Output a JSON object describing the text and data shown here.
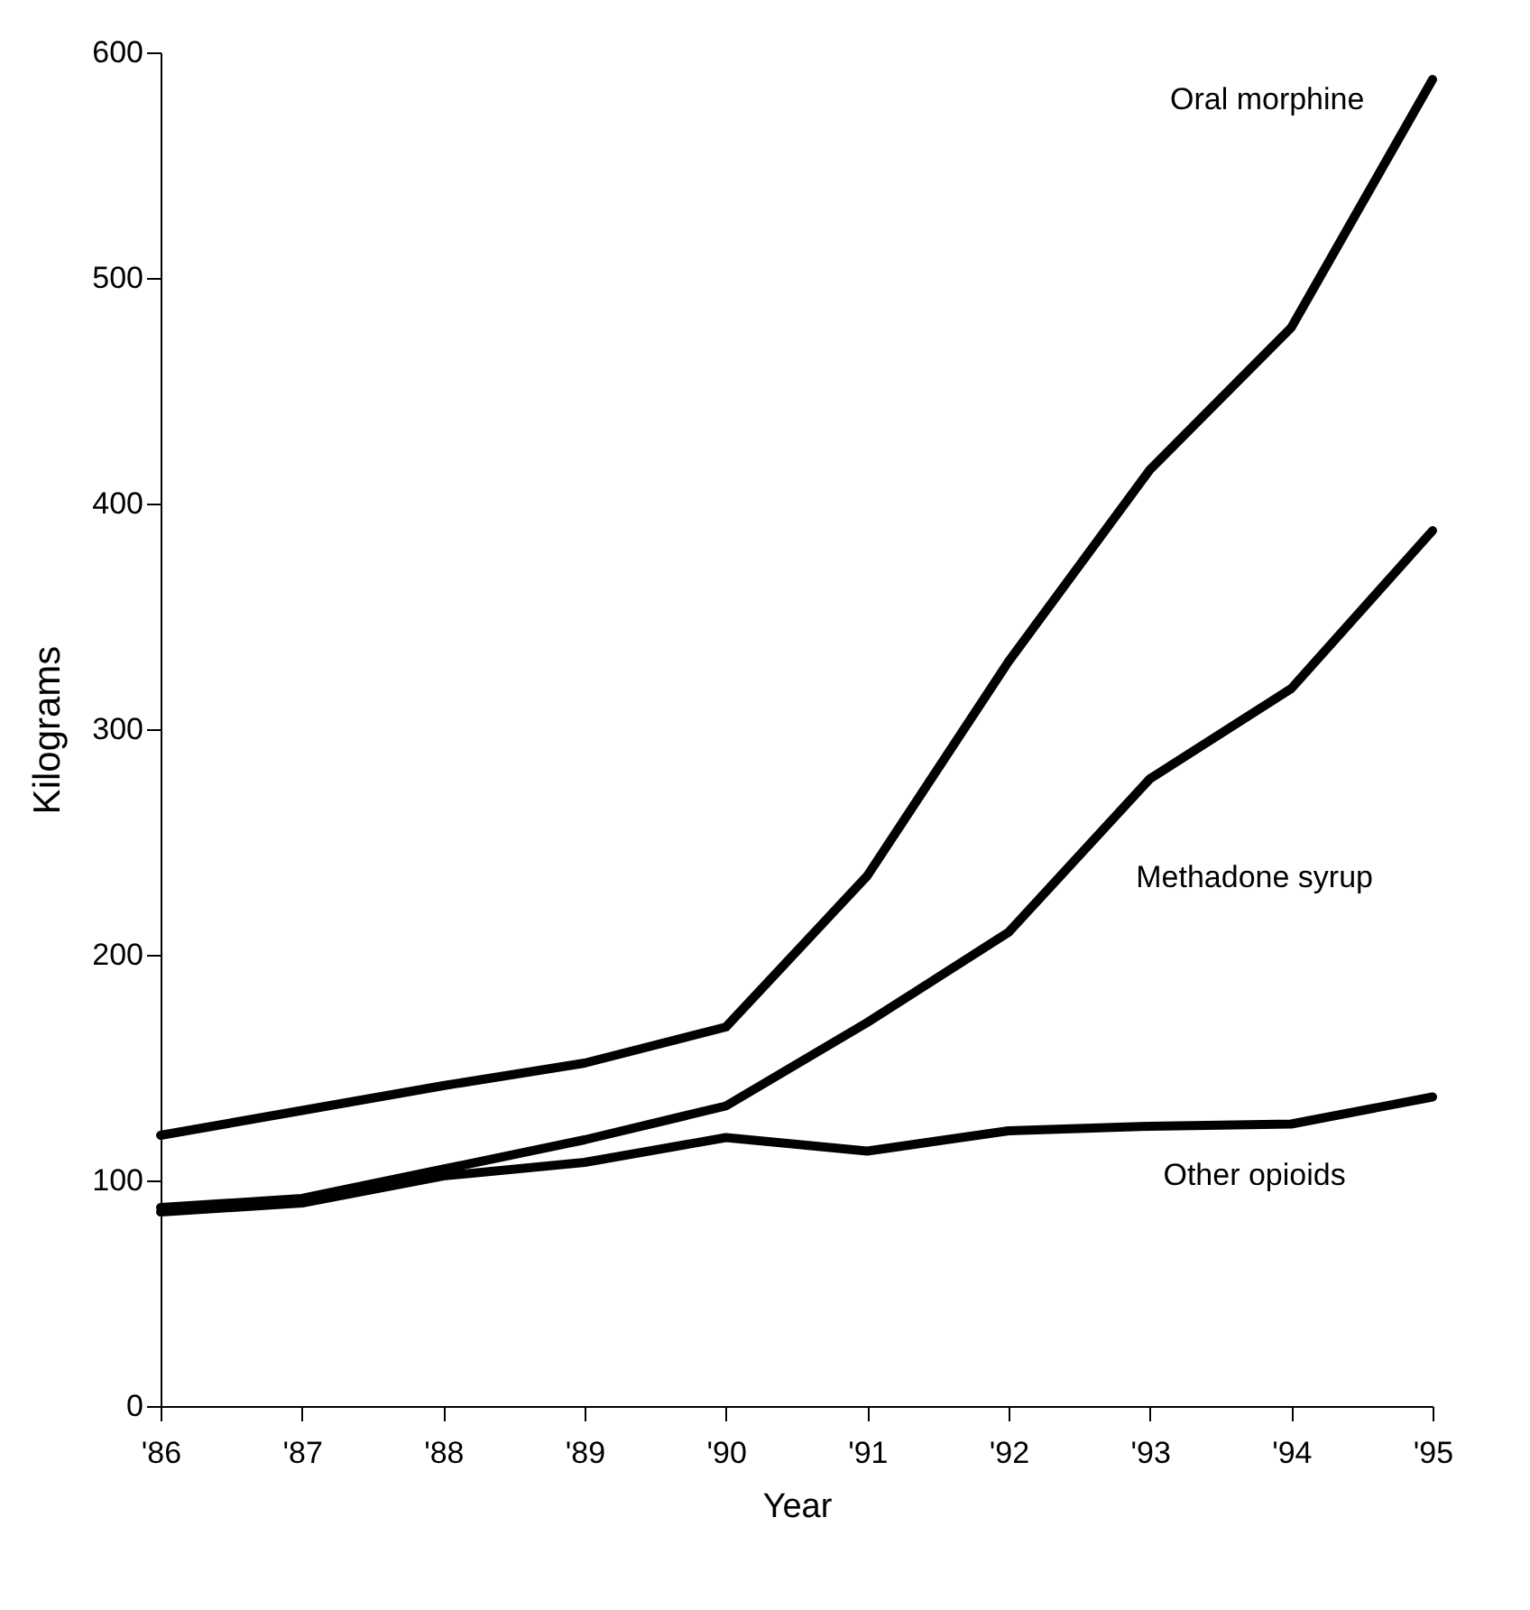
{
  "chart_data": {
    "type": "line",
    "xlabel": "Year",
    "ylabel": "Kilograms",
    "categories": [
      "'86",
      "'87",
      "'88",
      "'89",
      "'90",
      "'91",
      "'92",
      "'93",
      "'94",
      "'95"
    ],
    "series": [
      {
        "name": "Oral morphine",
        "color": "#000000",
        "values": [
          120,
          131,
          142,
          152,
          168,
          235,
          330,
          415,
          478,
          588
        ]
      },
      {
        "name": "Methadone syrup",
        "color": "#000000",
        "values": [
          88,
          92,
          105,
          118,
          133,
          170,
          210,
          278,
          318,
          388
        ]
      },
      {
        "name": "Other opioids",
        "color": "#000000",
        "values": [
          86,
          90,
          102,
          108,
          119,
          113,
          122,
          124,
          125,
          137
        ]
      }
    ],
    "ylim": [
      0,
      600
    ],
    "yticks": [
      0,
      100,
      200,
      300,
      400,
      500,
      600
    ],
    "grid": false,
    "legend": false,
    "marker": "none",
    "line_style": "solid"
  }
}
